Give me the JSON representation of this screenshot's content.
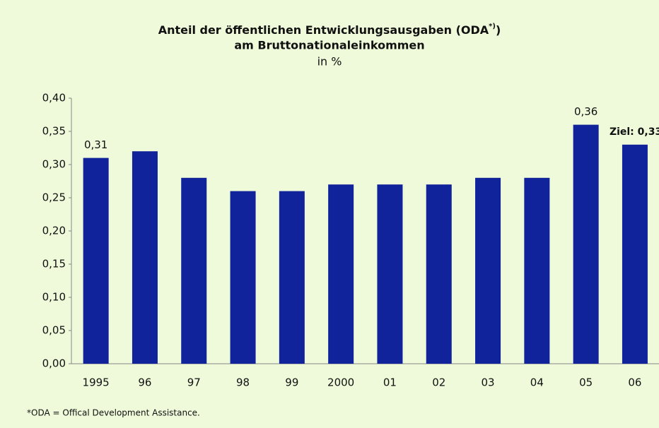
{
  "chart_data": {
    "type": "bar",
    "title": {
      "text": "Anteil der öffentlichen Entwicklungsausgaben (ODA",
      "sup": "*)",
      "end": ")"
    },
    "subtitle": "am Bruttonationaleinkommen",
    "unit": "in %",
    "footnote": "*ODA = Offical Development Assistance.",
    "categories": [
      "1995",
      "96",
      "97",
      "98",
      "99",
      "2000",
      "01",
      "02",
      "03",
      "04",
      "05",
      "06"
    ],
    "values": [
      0.31,
      0.32,
      0.28,
      0.26,
      0.26,
      0.27,
      0.27,
      0.27,
      0.28,
      0.28,
      0.36,
      0.33
    ],
    "value_labels": [
      "0,31",
      null,
      null,
      null,
      null,
      null,
      null,
      null,
      null,
      null,
      "0,36",
      "Ziel: 0,33"
    ],
    "color": "#11239b",
    "ylim": [
      0,
      0.4
    ],
    "yticks": [
      {
        "value": 0,
        "label": "0,00"
      },
      {
        "value": 0.05,
        "label": "0,05"
      },
      {
        "value": 0.1,
        "label": "0,10"
      },
      {
        "value": 0.15,
        "label": "0,15"
      },
      {
        "value": 0.2,
        "label": "0,20"
      },
      {
        "value": 0.25,
        "label": "0,25"
      },
      {
        "value": 0.3,
        "label": "0,30"
      },
      {
        "value": 0.35,
        "label": "0,35"
      },
      {
        "value": 0.4,
        "label": "0,40"
      }
    ],
    "grid": false
  }
}
